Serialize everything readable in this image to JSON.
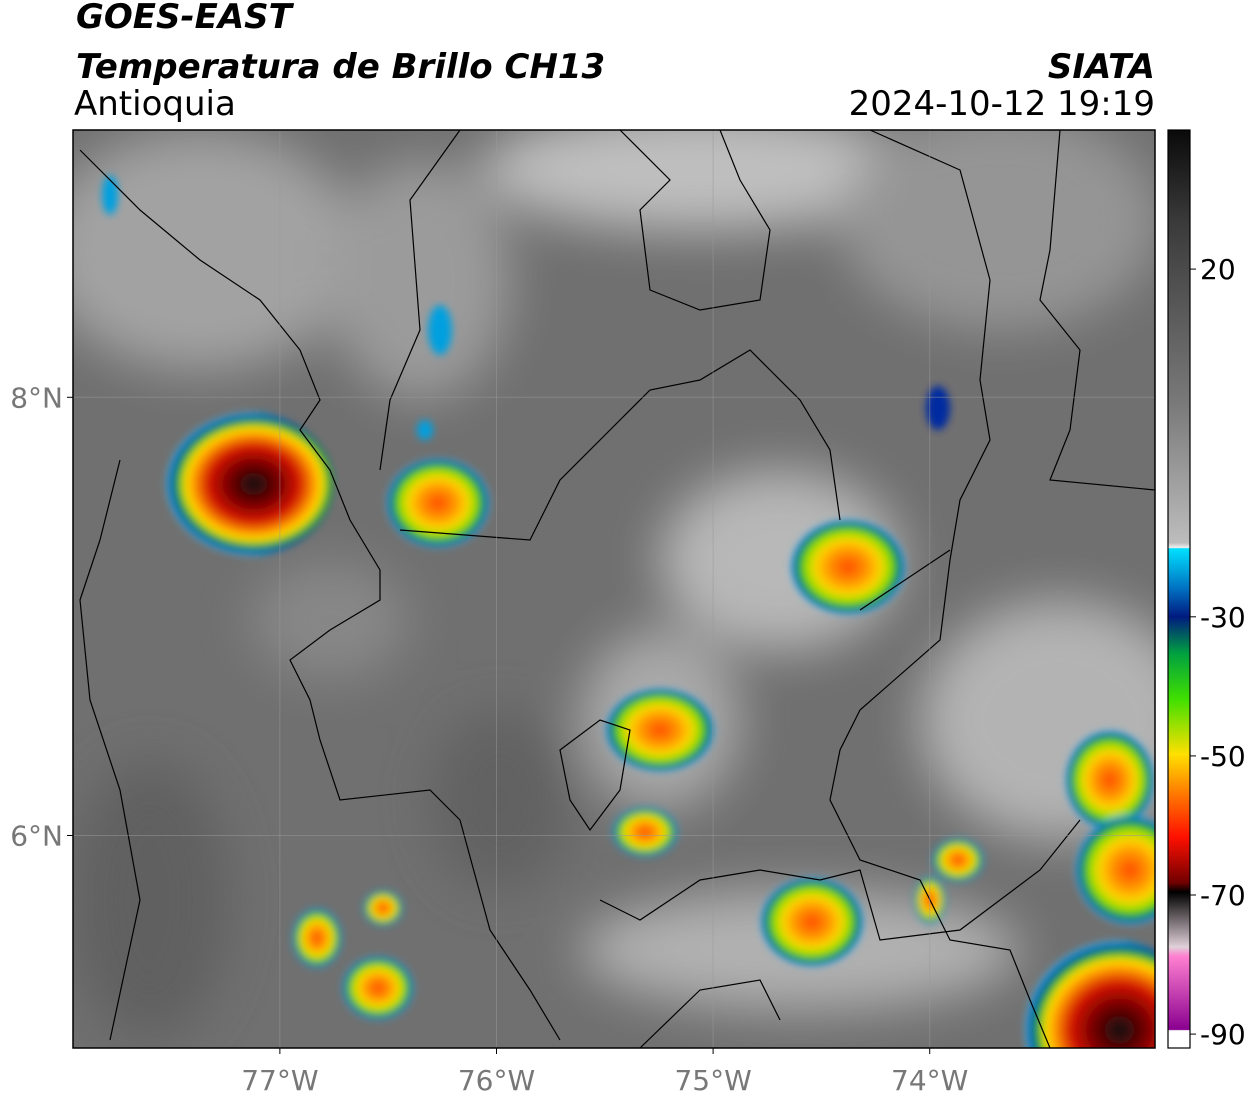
{
  "chart_data": {
    "type": "map",
    "title": "GOES-EAST",
    "subtitle": "Temperatura de Brillo CH13",
    "region": "Antioquia",
    "source": "SIATA",
    "timestamp": "2024-10-12 19:19",
    "xlim": [
      -77.955,
      -72.96
    ],
    "ylim": [
      5.03,
      9.22
    ],
    "xticks": [
      {
        "value": -77,
        "label": "77°W"
      },
      {
        "value": -76,
        "label": "76°W"
      },
      {
        "value": -75,
        "label": "75°W"
      },
      {
        "value": -74,
        "label": "74°W"
      }
    ],
    "yticks": [
      {
        "value": 8,
        "label": "8°N"
      },
      {
        "value": 6,
        "label": "6°N"
      }
    ],
    "grid": true,
    "colorbar": {
      "lim": [
        -92,
        40
      ],
      "ticks": [
        20,
        -30,
        -50,
        -70,
        -90
      ]
    }
  }
}
